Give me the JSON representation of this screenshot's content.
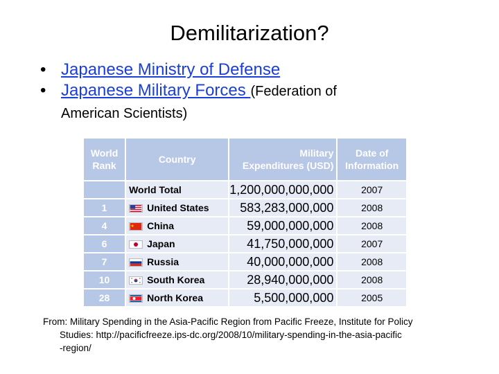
{
  "title": "Demilitarization?",
  "bullets": [
    {
      "link": "Japanese Ministry of Defense"
    },
    {
      "link": "Japanese Military Forces ",
      "suffix": "(Federation of",
      "continuation": "American Scientists)"
    }
  ],
  "table": {
    "headers": {
      "rank": [
        "World",
        "Rank"
      ],
      "country": "Country",
      "expenditure": [
        "Military",
        "Expenditures (USD)"
      ],
      "date": [
        "Date of",
        "Information"
      ]
    },
    "total": {
      "country": "World Total",
      "expenditure": "1,200,000,000,000",
      "date": "2007"
    },
    "rows": [
      {
        "rank": "1",
        "country": "United States",
        "flag": "us-flag-icon",
        "expenditure": "583,283,000,000",
        "date": "2008"
      },
      {
        "rank": "4",
        "country": "China",
        "flag": "china-flag-icon",
        "expenditure": "59,000,000,000",
        "date": "2008"
      },
      {
        "rank": "6",
        "country": "Japan",
        "flag": "japan-flag-icon",
        "expenditure": "41,750,000,000",
        "date": "2007"
      },
      {
        "rank": "7",
        "country": "Russia",
        "flag": "russia-flag-icon",
        "expenditure": "40,000,000,000",
        "date": "2008"
      },
      {
        "rank": "10",
        "country": "South Korea",
        "flag": "south-korea-flag-icon",
        "expenditure": "28,940,000,000",
        "date": "2008"
      },
      {
        "rank": "28",
        "country": "North Korea",
        "flag": "north-korea-flag-icon",
        "expenditure": "5,500,000,000",
        "date": "2005"
      }
    ],
    "colors": {
      "header_bg": "#b7c7e6",
      "cell_bg": "#e6ebf6"
    }
  },
  "footnote": {
    "line1": "From: Military Spending in the Asia-Pacific Region from Pacific Freeze, Institute for Policy",
    "line2": "Studies: http://pacificfreeze.ips-dc.org/2008/10/military-spending-in-the-asia-pacific",
    "line3": "-region/"
  }
}
